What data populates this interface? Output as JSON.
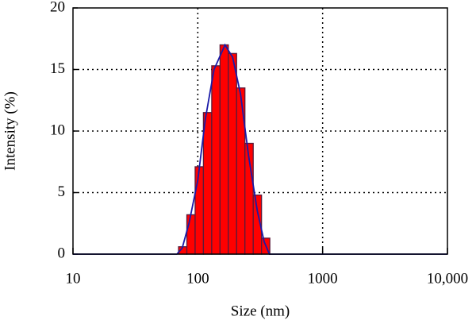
{
  "chart_data": {
    "type": "histogram",
    "xlabel": "Size (nm)",
    "ylabel": "Intensity (%)",
    "xscale": "log",
    "xlim": [
      10,
      10000
    ],
    "xticks": [
      10,
      100,
      1000,
      {
        "value": 10000,
        "label": "10,000"
      }
    ],
    "ylim": [
      0,
      20
    ],
    "yticks": [
      0,
      5,
      10,
      15,
      20
    ],
    "grid": true,
    "color": "#ff0000",
    "edgecolor": "#5a1a3a",
    "bins": [
      70.1,
      81.7,
      95.2,
      110.9,
      129.3,
      150.7,
      175.6,
      204.6,
      238.5,
      278.0,
      324.0,
      377.6
    ],
    "values": [
      0.6,
      3.2,
      7.1,
      11.5,
      15.3,
      17.0,
      16.3,
      13.5,
      9.0,
      4.8,
      1.3
    ],
    "fit": {
      "color": "#1a1aa8",
      "x": [
        10,
        68,
        75,
        85,
        100,
        115,
        135,
        165,
        190,
        220,
        255,
        300,
        340,
        375,
        10000
      ],
      "values": [
        0,
        0,
        0.5,
        2.5,
        6,
        11,
        15,
        17,
        16,
        13,
        8,
        3.5,
        1,
        0,
        0
      ]
    }
  }
}
